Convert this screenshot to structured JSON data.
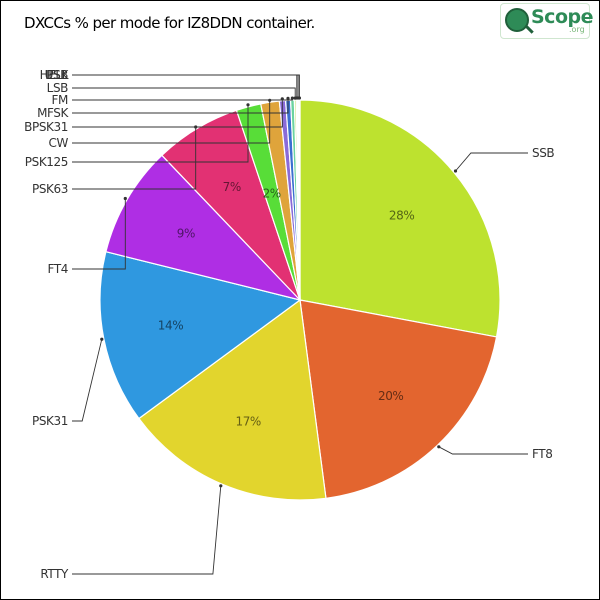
{
  "title": "DXCCs % per mode for IZ8DDN container.",
  "logo": {
    "text": "Scope",
    "sub": ".org"
  },
  "chart_data": {
    "type": "pie",
    "title": "DXCCs % per mode for IZ8DDN container.",
    "slices": [
      {
        "label": "SSB",
        "value": 28,
        "pct_label": "28%",
        "color": "#bde22f"
      },
      {
        "label": "FT8",
        "value": 20,
        "pct_label": "20%",
        "color": "#e3652f"
      },
      {
        "label": "RTTY",
        "value": 17,
        "pct_label": "17%",
        "color": "#e2d52d"
      },
      {
        "label": "PSK31",
        "value": 14,
        "pct_label": "14%",
        "color": "#2f98e0"
      },
      {
        "label": "FT4",
        "value": 9,
        "pct_label": "9%",
        "color": "#af2ee4"
      },
      {
        "label": "PSK63",
        "value": 7,
        "pct_label": "7%",
        "color": "#e23173"
      },
      {
        "label": "PSK125",
        "value": 2,
        "pct_label": "2%",
        "color": "#58dd38"
      },
      {
        "label": "CW",
        "value": 1.5,
        "pct_label": "",
        "color": "#dfa43b"
      },
      {
        "label": "BPSK31",
        "value": 0.5,
        "pct_label": "",
        "color": "#8a6bd8"
      },
      {
        "label": "MFSK",
        "value": 0.4,
        "pct_label": "",
        "color": "#3a6fd0"
      },
      {
        "label": "FM",
        "value": 0.3,
        "pct_label": "",
        "color": "#6bd3a0"
      },
      {
        "label": "LSB",
        "value": 0.15,
        "pct_label": "",
        "color": "#c9e07a"
      },
      {
        "label": "HELL",
        "value": 0.1,
        "pct_label": "",
        "color": "#3db0c0"
      },
      {
        "label": "PSK",
        "value": 0.1,
        "pct_label": "",
        "color": "#e07ac0"
      },
      {
        "label": "USB",
        "value": 0.1,
        "pct_label": "",
        "color": "#7ac0e0"
      }
    ]
  }
}
